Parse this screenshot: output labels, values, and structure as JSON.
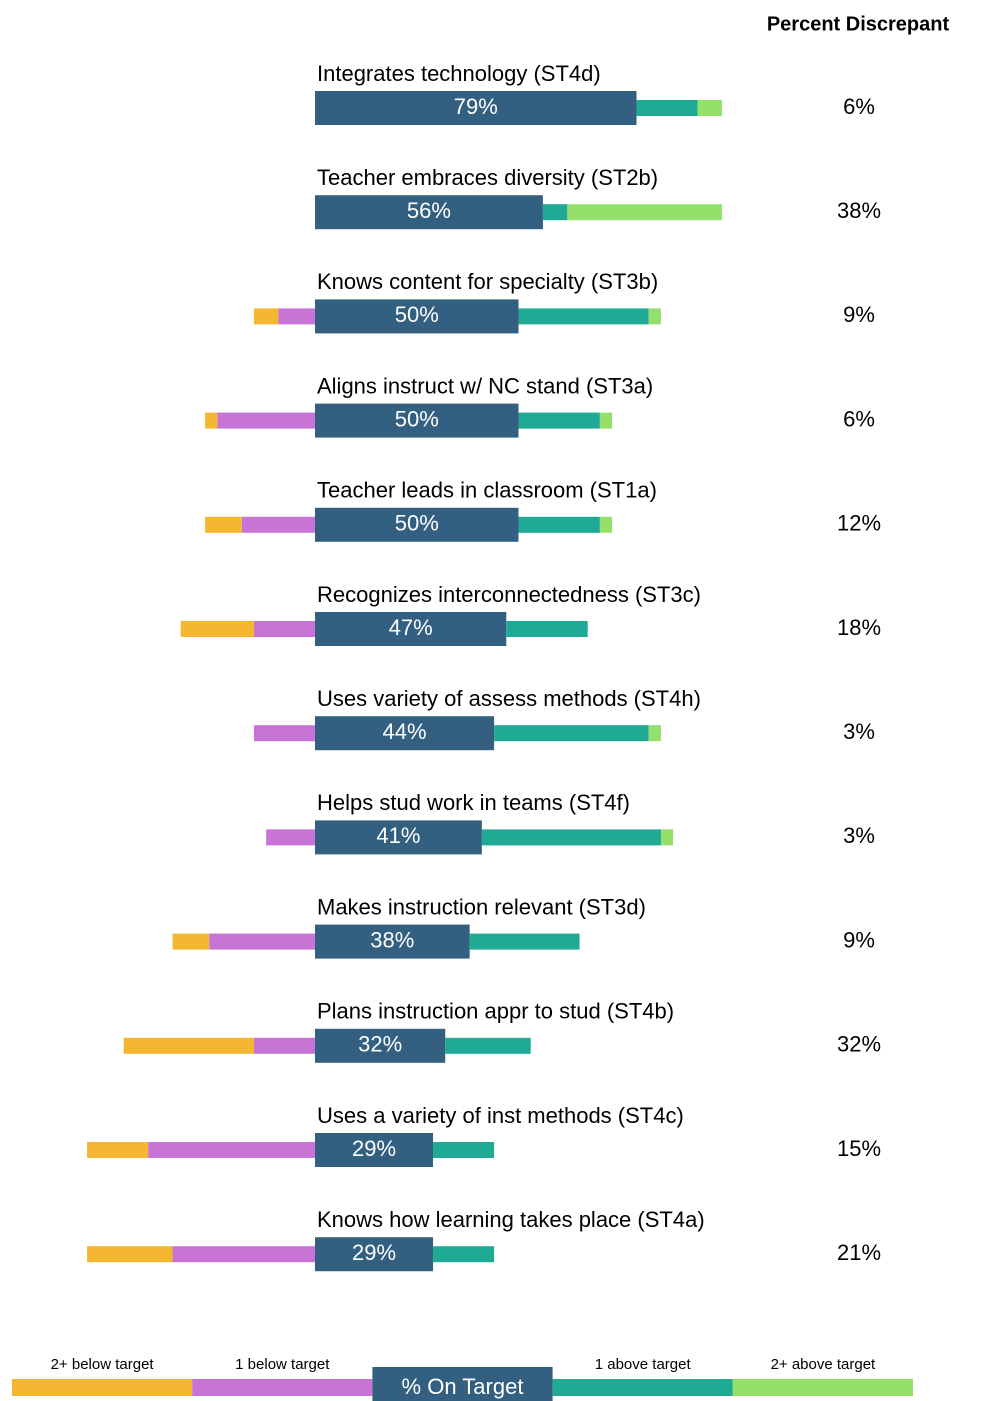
{
  "chart_data": {
    "type": "diverging_bar",
    "categories": [
      "Integrates technology (ST4d)",
      "Teacher embraces diversity (ST2b)",
      "Knows content for specialty (ST3b)",
      "Aligns instruct w/ NC stand (ST3a)",
      "Teacher leads in classroom (ST1a)",
      "Recognizes interconnectedness  (ST3c)",
      "Uses variety of assess methods (ST4h)",
      "Helps stud work in teams (ST4f)",
      "Makes instruction relevant (ST3d)",
      "Plans instruction appr to stud (ST4b)",
      "Uses a variety of inst methods (ST4c)",
      "Knows how learning takes place (ST4a)"
    ],
    "series": [
      {
        "name": "2+ below target",
        "color": "#f5b731",
        "values": [
          0,
          0,
          6,
          3,
          9,
          18,
          0,
          0,
          9,
          32,
          15,
          21
        ]
      },
      {
        "name": "1 below target",
        "color": "#c774d6",
        "values": [
          0,
          0,
          9,
          24,
          18,
          15,
          15,
          12,
          26,
          15,
          41,
          35
        ]
      },
      {
        "name": "% On Target",
        "color": "#336080",
        "values": [
          79,
          56,
          50,
          50,
          50,
          47,
          44,
          41,
          38,
          32,
          29,
          29
        ],
        "value_labels": [
          "79%",
          "56%",
          "50%",
          "50%",
          "50%",
          "47%",
          "44%",
          "41%",
          "38%",
          "32%",
          "29%",
          "29%"
        ]
      },
      {
        "name": "1 above target",
        "color": "#1faa96",
        "values": [
          15,
          6,
          32,
          20,
          20,
          20,
          38,
          44,
          27,
          21,
          15,
          15
        ]
      },
      {
        "name": "2+ above target",
        "color": "#95e06a",
        "values": [
          6,
          38,
          3,
          3,
          3,
          0,
          3,
          3,
          0,
          0,
          0,
          0
        ]
      }
    ],
    "discrepant": {
      "title": "Percent Discrepant",
      "values": [
        6,
        38,
        9,
        6,
        12,
        18,
        3,
        3,
        9,
        32,
        15,
        21
      ],
      "value_labels": [
        "6%",
        "38%",
        "9%",
        "6%",
        "12%",
        "18%",
        "3%",
        "3%",
        "9%",
        "32%",
        "15%",
        "21%"
      ]
    }
  }
}
